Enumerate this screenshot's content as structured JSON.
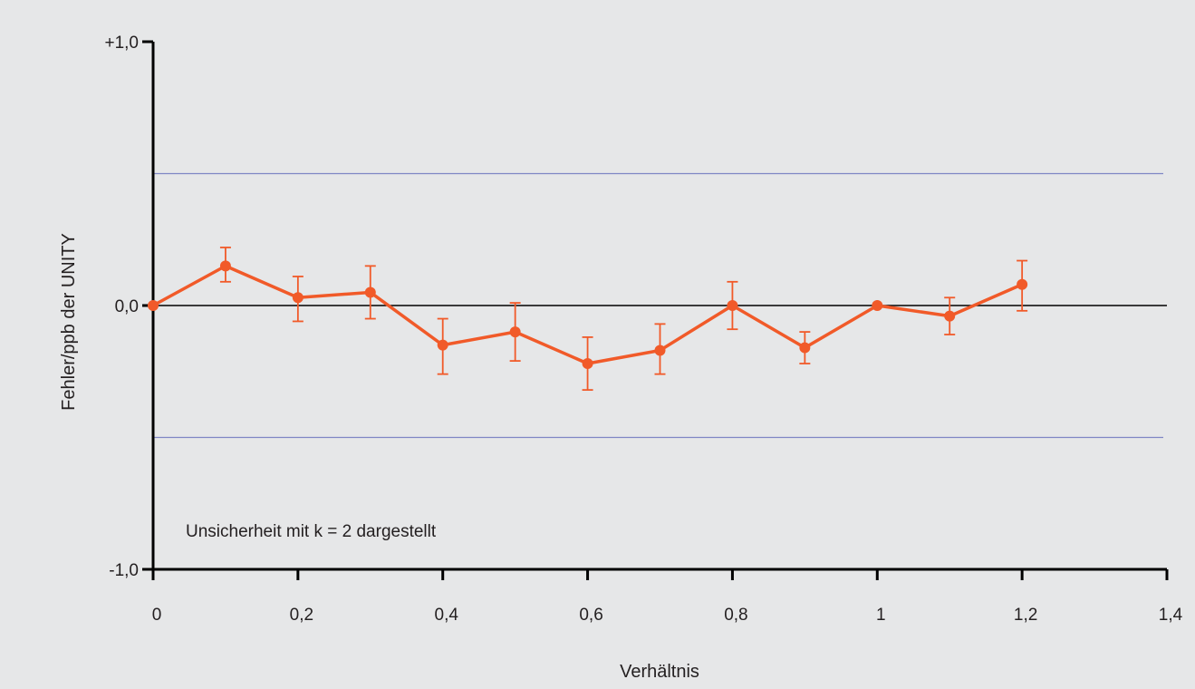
{
  "chart_data": {
    "type": "line",
    "title": "",
    "xlabel": "Verhältnis",
    "ylabel": "Fehler/ppb der UNITY",
    "annotation": "Unsicherheit mit k = 2 dargestellt",
    "xlim": [
      0,
      1.4
    ],
    "ylim": [
      -1.0,
      1.0
    ],
    "x_ticks": [
      0,
      0.2,
      0.4,
      0.6,
      0.8,
      1.0,
      1.2,
      1.4
    ],
    "x_tick_labels": [
      "0",
      "0,2",
      "0,4",
      "0,6",
      "0,8",
      "1",
      "1,2",
      "1,4"
    ],
    "y_ticks": [
      1.0,
      0.0,
      -1.0
    ],
    "y_tick_labels": [
      "+1,0",
      "0,0",
      "-1,0"
    ],
    "limit_lines": [
      0.5,
      -0.5
    ],
    "grid": false,
    "series": [
      {
        "x": [
          0,
          0.1,
          0.2,
          0.3,
          0.4,
          0.5,
          0.6,
          0.7,
          0.8,
          0.9,
          1.0,
          1.1,
          1.2
        ],
        "y": [
          0.0,
          0.15,
          0.03,
          0.05,
          -0.15,
          -0.1,
          -0.22,
          -0.17,
          0.0,
          -0.16,
          0.0,
          -0.04,
          0.08
        ],
        "err_upper": [
          0.0,
          0.22,
          0.11,
          0.15,
          -0.05,
          0.01,
          -0.12,
          -0.07,
          0.09,
          -0.1,
          0.0,
          0.03,
          0.17
        ],
        "err_lower": [
          0.0,
          0.09,
          -0.06,
          -0.05,
          -0.26,
          -0.21,
          -0.32,
          -0.26,
          -0.09,
          -0.22,
          0.0,
          -0.11,
          -0.02
        ]
      }
    ],
    "colors": {
      "series": "#f15a29",
      "limit_lines": "#7f86c4",
      "axis": "#000000",
      "background": "#e6e7e8"
    }
  }
}
